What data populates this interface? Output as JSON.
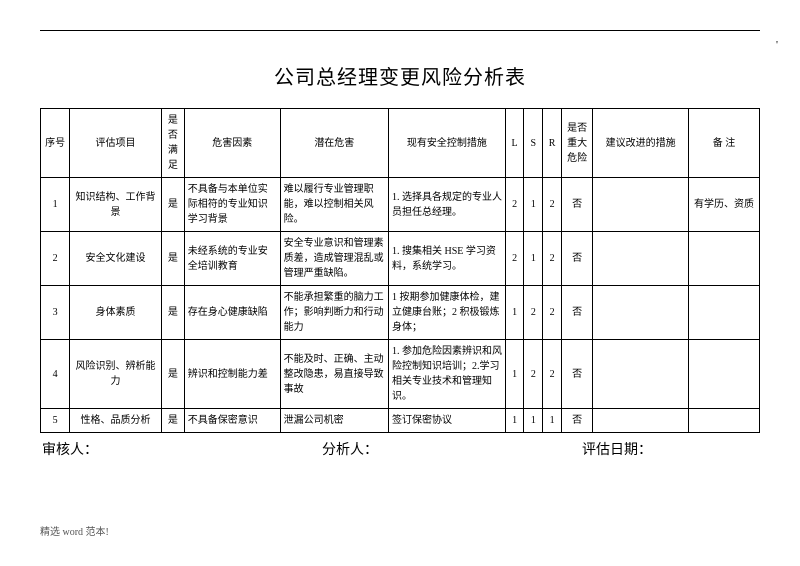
{
  "title": "公司总经理变更风险分析表",
  "headers": {
    "seq": "序号",
    "item": "评估项目",
    "satisfied": "是否满足",
    "factor": "危害因素",
    "hazard": "潜在危害",
    "control": "现有安全控制措施",
    "L": "L",
    "S": "S",
    "R": "R",
    "major": "是否重大危险",
    "suggest": "建议改进的措施",
    "note": "备 注"
  },
  "rows": [
    {
      "seq": "1",
      "item": "知识结构、工作背景",
      "satisfied": "是",
      "factor": "不具备与本单位实际相符的专业知识学习背景",
      "hazard": "难以履行专业管理职能，难以控制相关风险。",
      "control": "1. 选择具各规定的专业人员担任总经理。",
      "L": "2",
      "S": "1",
      "R": "2",
      "major": "否",
      "suggest": "",
      "note": "有学历、资质"
    },
    {
      "seq": "2",
      "item": "安全文化建设",
      "satisfied": "是",
      "factor": "未经系统的专业安全培训教育",
      "hazard": "安全专业意识和管理素质差，造成管理混乱或管理严重缺陷。",
      "control": "1. 搜集相关 HSE 学习资料，系统学习。",
      "L": "2",
      "S": "1",
      "R": "2",
      "major": "否",
      "suggest": "",
      "note": ""
    },
    {
      "seq": "3",
      "item": "身体素质",
      "satisfied": "是",
      "factor": "存在身心健康缺陷",
      "hazard": "不能承担繁重的脑力工作；影响判断力和行动能力",
      "control": "1 按期参加健康体检，建立健康台账；2  积极锻炼身体；",
      "L": "1",
      "S": "2",
      "R": "2",
      "major": "否",
      "suggest": "",
      "note": ""
    },
    {
      "seq": "4",
      "item": "风险识别、辨析能力",
      "satisfied": "是",
      "factor": "辨识和控制能力差",
      "hazard": "不能及时、正确、主动整改隐患，易直接导致事故",
      "control": "1. 参加危险因素辨识和风险控制知识培训；2.学习相关专业技术和管理知识。",
      "L": "1",
      "S": "2",
      "R": "2",
      "major": "否",
      "suggest": "",
      "note": ""
    },
    {
      "seq": "5",
      "item": "性格、品质分析",
      "satisfied": "是",
      "factor": "不具备保密意识",
      "hazard": "泄漏公司机密",
      "control": "签订保密协议",
      "L": "1",
      "S": "1",
      "R": "1",
      "major": "否",
      "suggest": "",
      "note": ""
    }
  ],
  "signatures": {
    "auditor": "审核人：",
    "analyst": "分析人：",
    "date": "评估日期："
  },
  "footer": "精选 word 范本!"
}
